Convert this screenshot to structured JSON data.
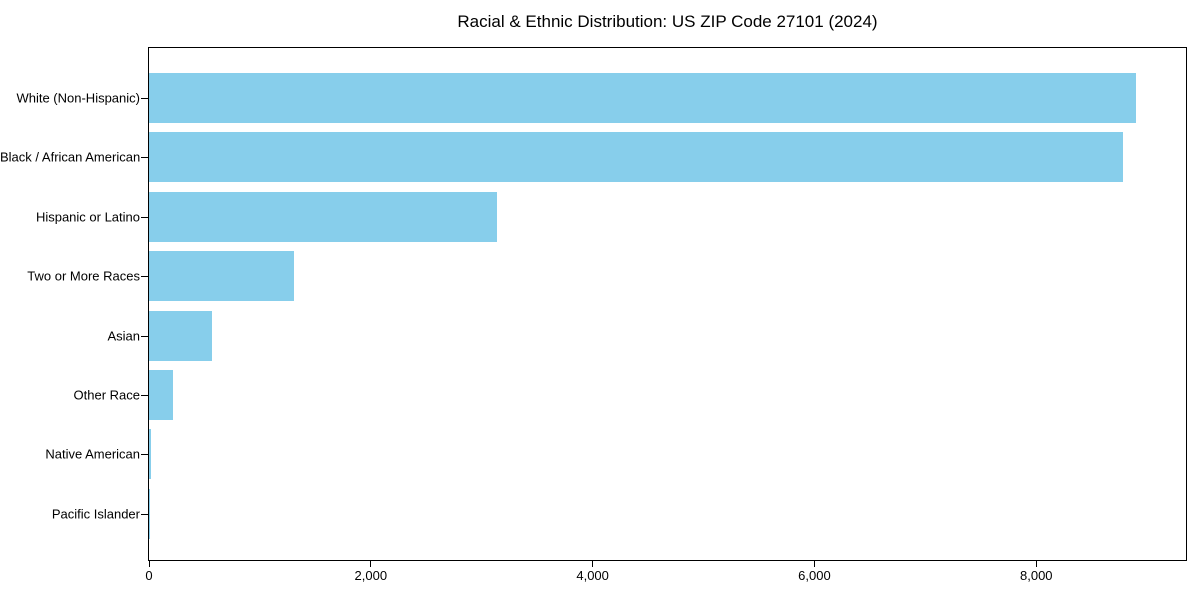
{
  "title": "Racial & Ethnic Distribution: US ZIP Code 27101 (2024)",
  "chart_data": {
    "type": "bar",
    "orientation": "horizontal",
    "title": "Racial & Ethnic Distribution: US ZIP Code 27101 (2024)",
    "xlabel": "",
    "ylabel": "",
    "categories": [
      "White (Non-Hispanic)",
      "Black / African American",
      "Hispanic or Latino",
      "Two or More Races",
      "Asian",
      "Other Race",
      "Native American",
      "Pacific Islander"
    ],
    "values": [
      8900,
      8780,
      3140,
      1310,
      565,
      220,
      15,
      5
    ],
    "xlim": [
      0,
      9350
    ],
    "xticks": [
      0,
      2000,
      4000,
      6000,
      8000
    ],
    "xtick_labels": [
      "0",
      "2,000",
      "4,000",
      "6,000",
      "8,000"
    ],
    "bar_color": "#87CEEB",
    "axis_color": "#000000",
    "background_color": "#ffffff",
    "grid": false,
    "legend": null
  }
}
